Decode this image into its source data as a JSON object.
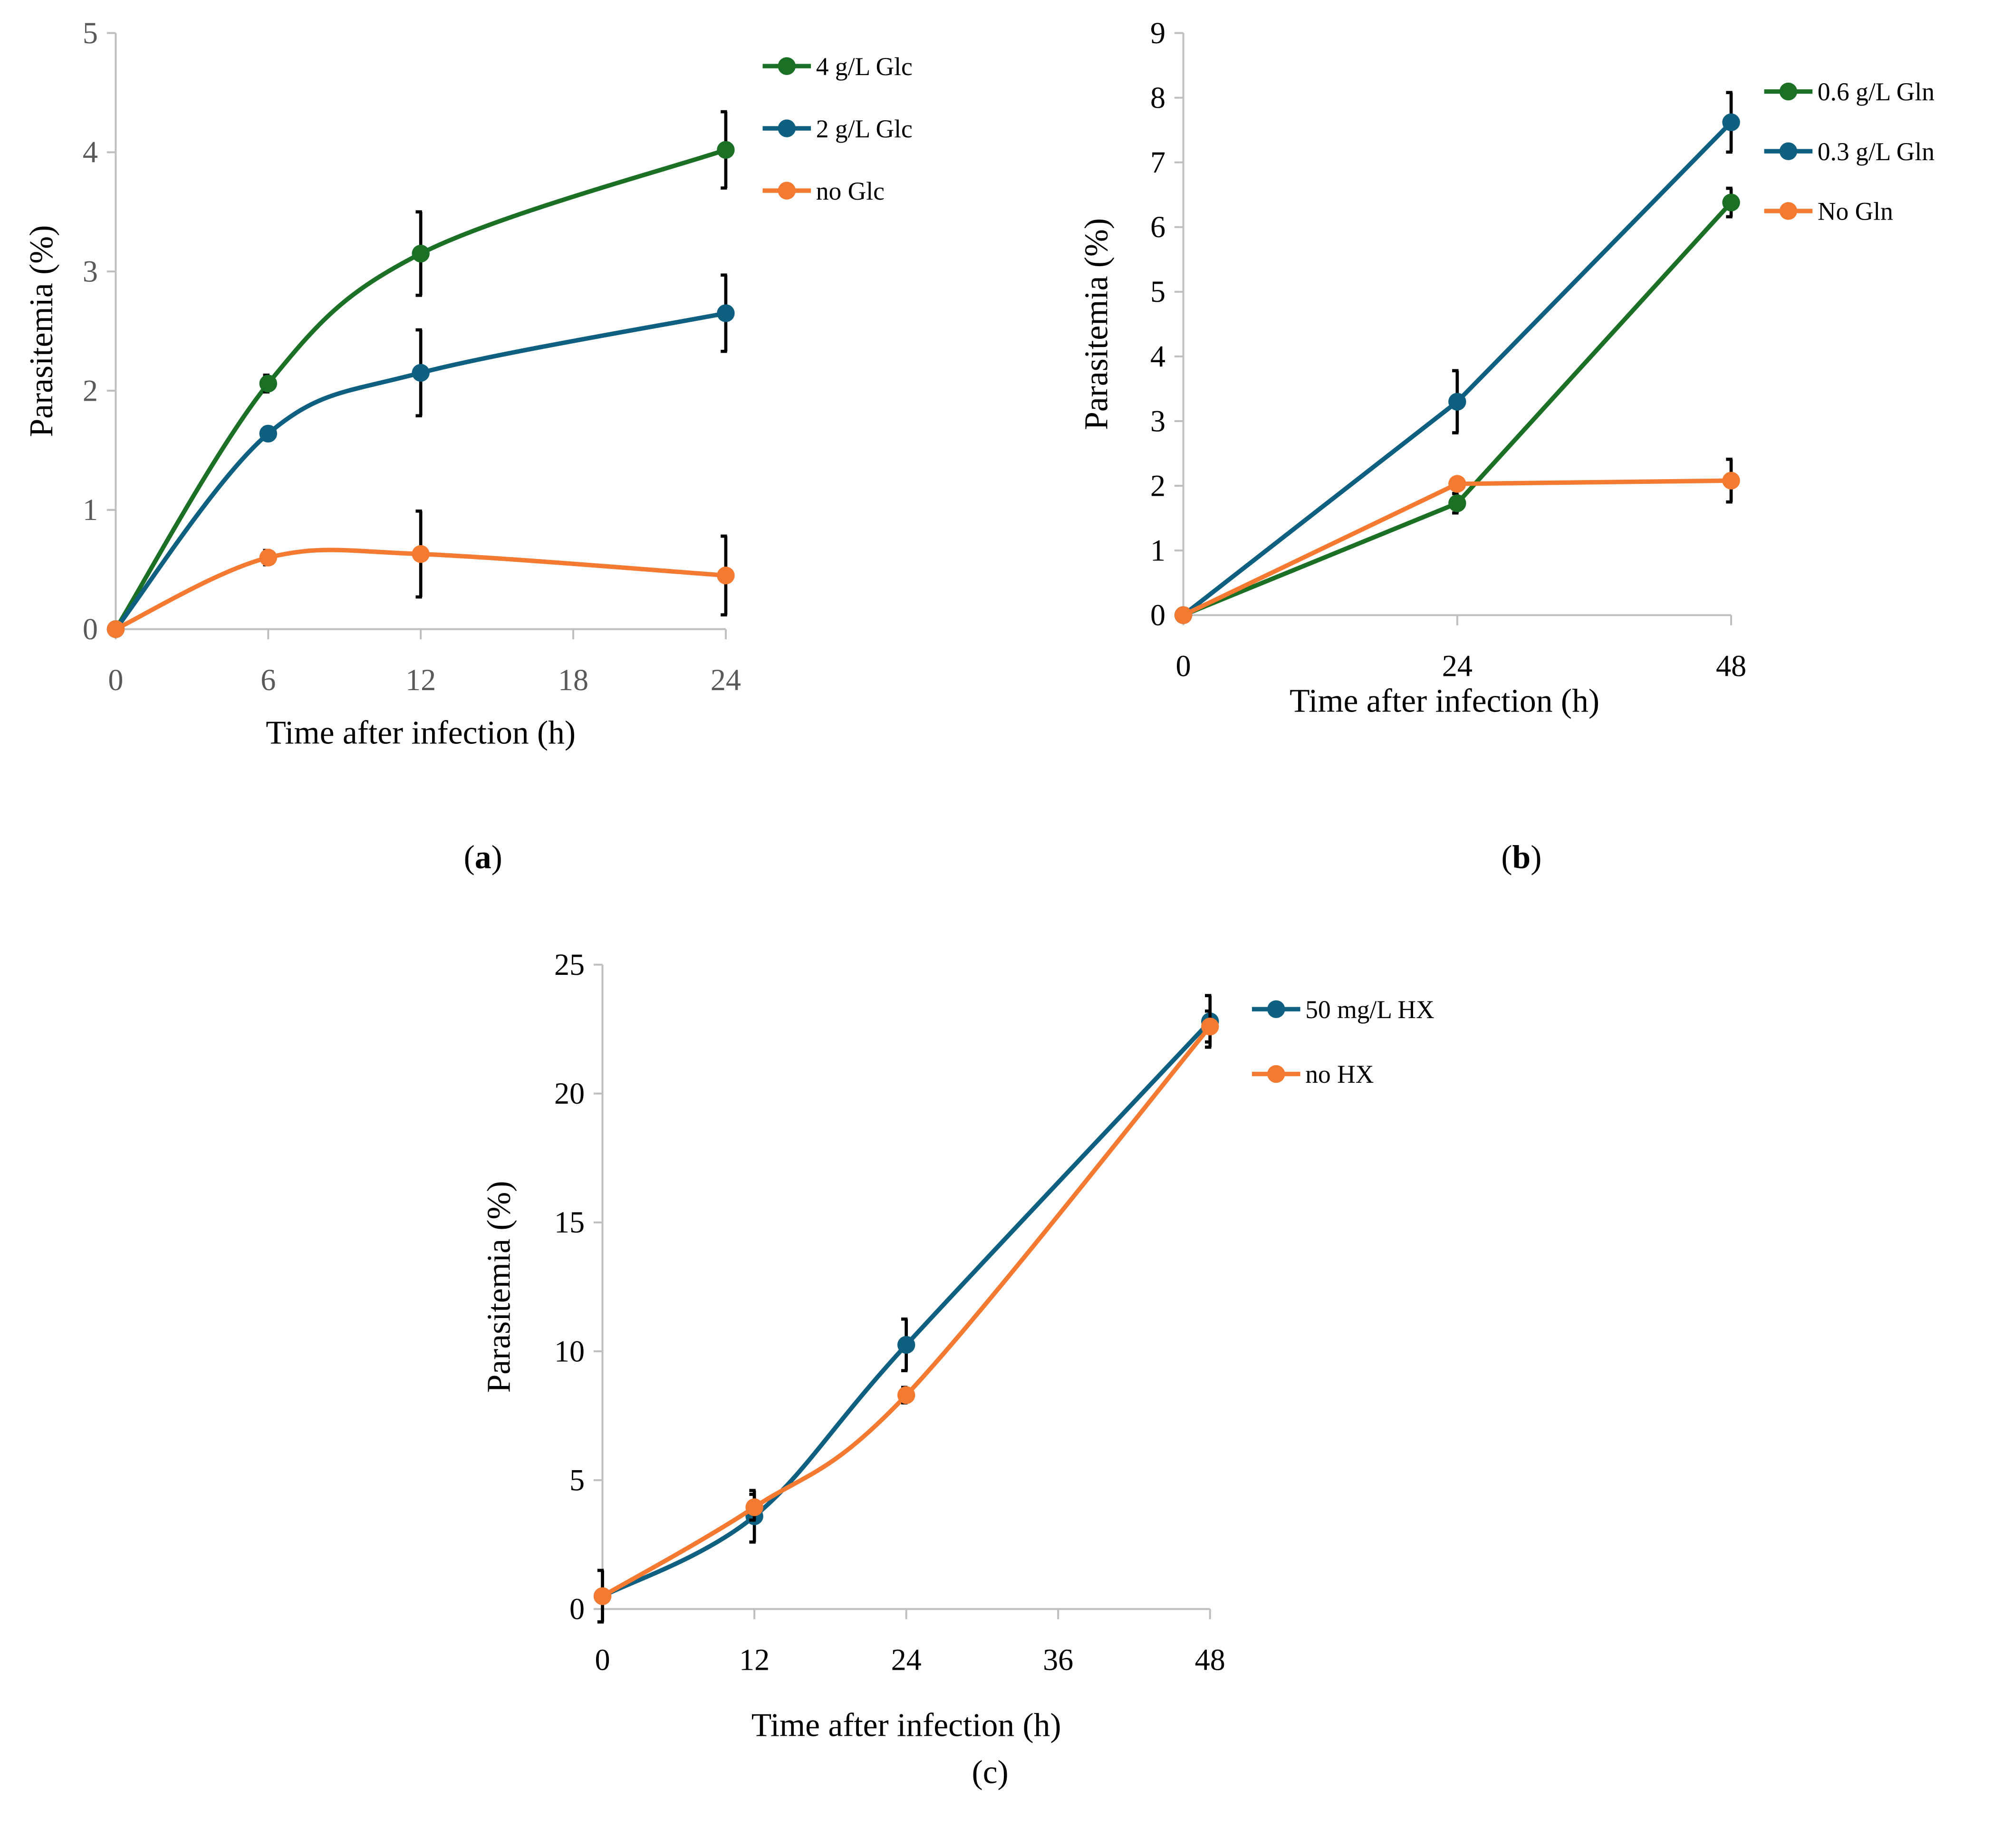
{
  "chart_data": [
    {
      "id": "a",
      "type": "line",
      "panel_label": "a",
      "xlabel": "Time after infection (h)",
      "ylabel": "Parasitemia (%)",
      "xlim": [
        0,
        24
      ],
      "ylim": [
        0,
        5
      ],
      "xticks": [
        0,
        6,
        12,
        18,
        24
      ],
      "yticks": [
        0,
        1,
        2,
        3,
        4,
        5
      ],
      "smooth": true,
      "legend_position": "top-right",
      "x": [
        0,
        6,
        12,
        24
      ],
      "series": [
        {
          "name": "4 g/L Glc",
          "color": "#1b7025",
          "values": [
            0,
            2.06,
            3.15,
            4.02
          ],
          "errors": [
            0,
            0.07,
            0.35,
            0.32
          ]
        },
        {
          "name": "2 g/L Glc",
          "color": "#0e5f80",
          "values": [
            0,
            1.64,
            2.15,
            2.65
          ],
          "errors": [
            0,
            0.05,
            0.36,
            0.32
          ]
        },
        {
          "name": "no Glc",
          "color": "#f47a32",
          "values": [
            0,
            0.6,
            0.63,
            0.45
          ],
          "errors": [
            0,
            0.06,
            0.36,
            0.33
          ]
        }
      ]
    },
    {
      "id": "b",
      "type": "line",
      "panel_label": "b",
      "xlabel": "Time after infection (h)",
      "ylabel": "Parasitemia (%)",
      "xlim": [
        0,
        48
      ],
      "ylim": [
        0,
        9
      ],
      "xticks": [
        0,
        24,
        48
      ],
      "yticks": [
        0,
        1,
        2,
        3,
        4,
        5,
        6,
        7,
        8,
        9
      ],
      "smooth": false,
      "legend_position": "top-right",
      "x": [
        0,
        24,
        48
      ],
      "series": [
        {
          "name": "0.6 g/L Gln",
          "color": "#1b7025",
          "values": [
            0,
            1.73,
            6.38
          ],
          "errors": [
            0,
            0.15,
            0.22
          ]
        },
        {
          "name": "0.3 g/L Gln",
          "color": "#0e5f80",
          "values": [
            0,
            3.3,
            7.62
          ],
          "errors": [
            0,
            0.48,
            0.46
          ]
        },
        {
          "name": "No Gln",
          "color": "#f47a32",
          "values": [
            0,
            2.03,
            2.08
          ],
          "errors": [
            0,
            0,
            0.33
          ]
        }
      ]
    },
    {
      "id": "c",
      "type": "line",
      "panel_label": "c",
      "xlabel": "Time after infection (h)",
      "ylabel": "Parasitemia (%)",
      "xlim": [
        0,
        48
      ],
      "ylim": [
        0,
        25
      ],
      "xticks": [
        0,
        12,
        24,
        36,
        48
      ],
      "yticks": [
        0,
        5,
        10,
        15,
        20,
        25
      ],
      "smooth": true,
      "legend_position": "top-right",
      "x": [
        0,
        12,
        24,
        48
      ],
      "series": [
        {
          "name": "50 mg/L HX",
          "color": "#0e5f80",
          "values": [
            0.5,
            3.6,
            10.25,
            22.8
          ],
          "errors": [
            1.0,
            1.0,
            1.0,
            1.0
          ]
        },
        {
          "name": "no HX",
          "color": "#f47a32",
          "values": [
            0.5,
            3.95,
            8.3,
            22.6
          ],
          "errors": [
            0,
            0.5,
            0.3,
            0.6
          ]
        }
      ]
    }
  ]
}
